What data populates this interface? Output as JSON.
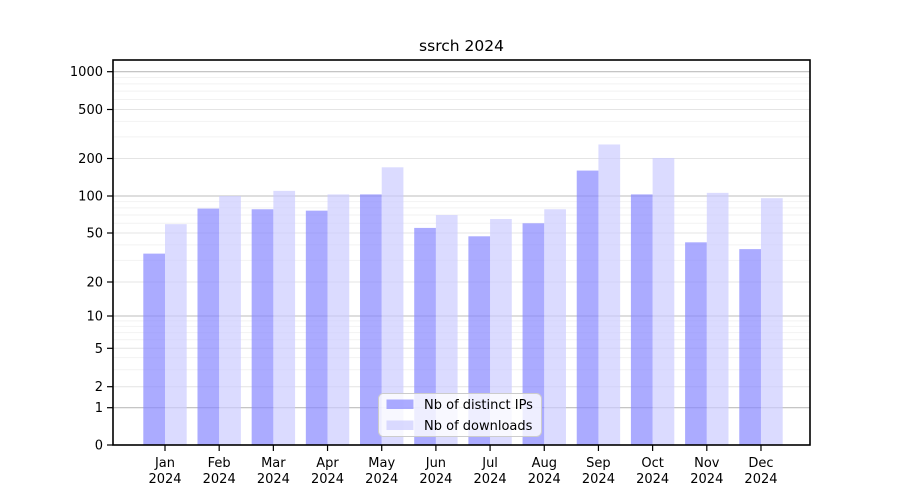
{
  "title": "ssrch 2024",
  "chart_data": {
    "type": "bar",
    "title": "ssrch 2024",
    "categories": [
      "Jan",
      "Feb",
      "Mar",
      "Apr",
      "May",
      "Jun",
      "Jul",
      "Aug",
      "Sep",
      "Oct",
      "Nov",
      "Dec"
    ],
    "x_tick_year": "2024",
    "series": [
      {
        "name": "Nb of distinct IPs",
        "color": "#8888ff",
        "opacity": 0.7,
        "values": [
          34,
          79,
          78,
          76,
          103,
          55,
          47,
          60,
          160,
          103,
          42,
          37
        ]
      },
      {
        "name": "Nb of downloads",
        "color": "#ccccff",
        "opacity": 0.7,
        "values": [
          59,
          100,
          110,
          103,
          170,
          70,
          65,
          78,
          260,
          202,
          106,
          96
        ]
      }
    ],
    "y_ticks": [
      0,
      1,
      2,
      5,
      10,
      20,
      50,
      100,
      200,
      500,
      1000
    ],
    "y_scale": "symlog",
    "ylim": [
      0,
      1400
    ],
    "grid": true,
    "legend_position": "lower center",
    "grid_color_major": "#bdbdbd",
    "grid_color_sub": "#e4e4e4",
    "grid_color_minor": "#f2f2f2",
    "legend_border_color": "#cccccc"
  }
}
